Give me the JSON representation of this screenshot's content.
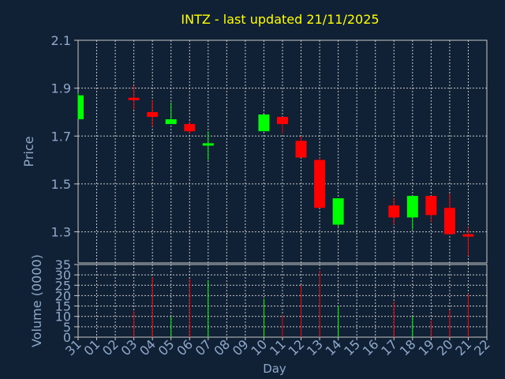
{
  "chart_data": {
    "type": "candlestick",
    "title": "INTZ - last updated 21/11/2025",
    "xlabel": "Day",
    "ylabel_price": "Price",
    "ylabel_volume": "Volume (0000)",
    "x_ticks": [
      "31",
      "01",
      "02",
      "03",
      "04",
      "05",
      "06",
      "07",
      "08",
      "09",
      "10",
      "11",
      "12",
      "13",
      "14",
      "15",
      "16",
      "17",
      "18",
      "19",
      "20",
      "21",
      "22"
    ],
    "price_ticks": [
      "2.1",
      "1.9",
      "1.7",
      "1.5",
      "1.3"
    ],
    "price_tick_values": [
      2.1,
      1.9,
      1.7,
      1.5,
      1.3
    ],
    "price_range": [
      1.17,
      2.1
    ],
    "volume_ticks": [
      "35",
      "30",
      "25",
      "20",
      "15",
      "10",
      "5",
      "0"
    ],
    "volume_tick_values": [
      35,
      30,
      25,
      20,
      15,
      10,
      5,
      0
    ],
    "volume_range": [
      0,
      35
    ],
    "grid": true,
    "colors": {
      "background": "#102035",
      "grid": "#c8c8c8",
      "axis_text": "#8fa9c9",
      "title": "#ffff00",
      "up": "#00ff00",
      "down": "#ff0000",
      "plot_border": "#c8c8c8"
    },
    "candles": [
      {
        "day": "31",
        "index": 0,
        "open": 1.77,
        "high": 1.88,
        "low": 1.77,
        "close": 1.87,
        "volume": 0
      },
      {
        "day": "03",
        "index": 3,
        "open": 1.86,
        "high": 1.91,
        "low": 1.81,
        "close": 1.85,
        "volume": 12.5
      },
      {
        "day": "04",
        "index": 4,
        "open": 1.8,
        "high": 1.85,
        "low": 1.74,
        "close": 1.78,
        "volume": 29
      },
      {
        "day": "05",
        "index": 5,
        "open": 1.75,
        "high": 1.84,
        "low": 1.75,
        "close": 1.77,
        "volume": 10
      },
      {
        "day": "06",
        "index": 6,
        "open": 1.75,
        "high": 1.76,
        "low": 1.71,
        "close": 1.72,
        "volume": 28
      },
      {
        "day": "07",
        "index": 7,
        "open": 1.66,
        "high": 1.72,
        "low": 1.6,
        "close": 1.67,
        "volume": 27.5
      },
      {
        "day": "10",
        "index": 10,
        "open": 1.72,
        "high": 1.79,
        "low": 1.72,
        "close": 1.79,
        "volume": 18.5
      },
      {
        "day": "11",
        "index": 11,
        "open": 1.78,
        "high": 1.78,
        "low": 1.71,
        "close": 1.75,
        "volume": 10.5
      },
      {
        "day": "12",
        "index": 12,
        "open": 1.68,
        "high": 1.7,
        "low": 1.61,
        "close": 1.61,
        "volume": 25
      },
      {
        "day": "13",
        "index": 13,
        "open": 1.6,
        "high": 1.61,
        "low": 1.4,
        "close": 1.4,
        "volume": 32
      },
      {
        "day": "14",
        "index": 14,
        "open": 1.33,
        "high": 1.44,
        "low": 1.32,
        "close": 1.44,
        "volume": 15
      },
      {
        "day": "17",
        "index": 17,
        "open": 1.41,
        "high": 1.44,
        "low": 1.33,
        "close": 1.36,
        "volume": 17
      },
      {
        "day": "18",
        "index": 18,
        "open": 1.36,
        "high": 1.45,
        "low": 1.31,
        "close": 1.45,
        "volume": 10
      },
      {
        "day": "19",
        "index": 19,
        "open": 1.45,
        "high": 1.45,
        "low": 1.34,
        "close": 1.37,
        "volume": 8
      },
      {
        "day": "20",
        "index": 20,
        "open": 1.4,
        "high": 1.46,
        "low": 1.29,
        "close": 1.29,
        "volume": 13
      },
      {
        "day": "21",
        "index": 21,
        "open": 1.29,
        "high": 1.32,
        "low": 1.2,
        "close": 1.28,
        "volume": 21
      }
    ]
  }
}
